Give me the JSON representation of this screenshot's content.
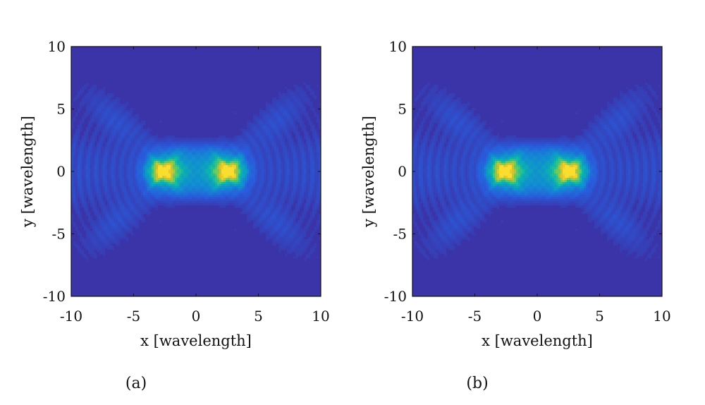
{
  "chart_data": [
    {
      "type": "heatmap",
      "panel_label": "(a)",
      "xlabel": "x [wavelength]",
      "ylabel": "y [wavelength]",
      "xlim": [
        -10,
        10
      ],
      "ylim": [
        -10,
        10
      ],
      "xticks": [
        -10,
        -5,
        0,
        5,
        10
      ],
      "yticks": [
        -10,
        -5,
        0,
        5,
        10
      ],
      "colormap": "parula",
      "colorbar": false,
      "grid": false,
      "background_color": "#3b34a8",
      "peak_color": "#f9de2f",
      "hotspots": [
        {
          "x": -2.6,
          "y": 0,
          "intensity": 1.0
        },
        {
          "x": 2.6,
          "y": 0,
          "intensity": 1.0
        }
      ],
      "main_lobe_extent": {
        "x": [
          -5.8,
          5.8
        ],
        "y": [
          -2.6,
          2.6
        ]
      },
      "sidelobe_extent": {
        "x": [
          -9.5,
          9.5
        ],
        "y": [
          -5.5,
          5.5
        ]
      }
    },
    {
      "type": "heatmap",
      "panel_label": "(b)",
      "xlabel": "x [wavelength]",
      "ylabel": "y [wavelength]",
      "xlim": [
        -10,
        10
      ],
      "ylim": [
        -10,
        10
      ],
      "xticks": [
        -10,
        -5,
        0,
        5,
        10
      ],
      "yticks": [
        -10,
        -5,
        0,
        5,
        10
      ],
      "colormap": "parula",
      "colorbar": false,
      "grid": false,
      "background_color": "#3b34a8",
      "peak_color": "#f9de2f",
      "hotspots": [
        {
          "x": -2.6,
          "y": 0,
          "intensity": 1.0
        },
        {
          "x": 2.6,
          "y": 0,
          "intensity": 1.0
        }
      ],
      "main_lobe_extent": {
        "x": [
          -5.8,
          5.8
        ],
        "y": [
          -2.6,
          2.6
        ]
      },
      "sidelobe_extent": {
        "x": [
          -9.5,
          9.5
        ],
        "y": [
          -5.5,
          5.5
        ]
      }
    }
  ]
}
